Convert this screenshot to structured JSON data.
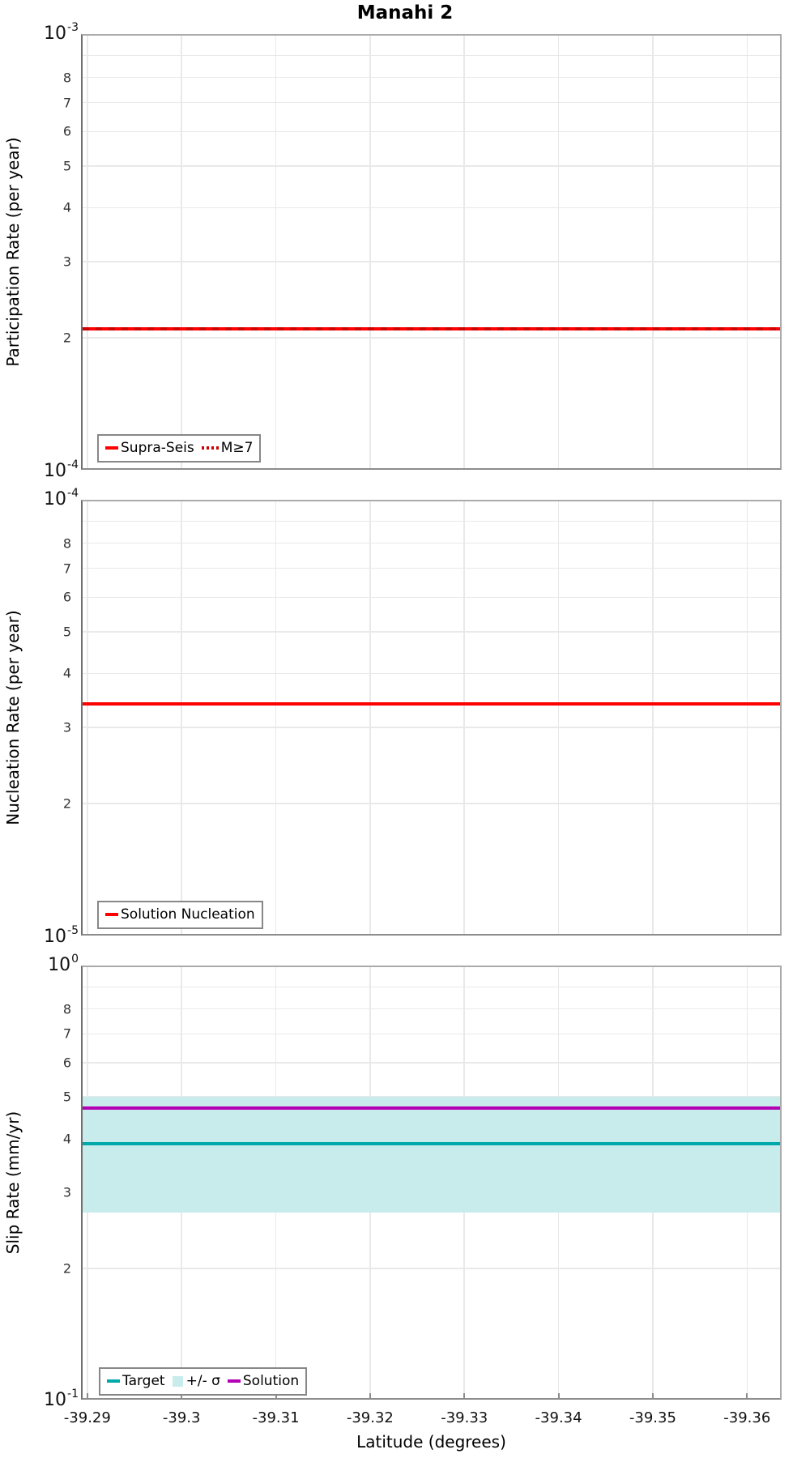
{
  "title": "Manahi 2",
  "xaxis": {
    "label": "Latitude (degrees)",
    "ticks": [
      -39.29,
      -39.3,
      -39.31,
      -39.32,
      -39.33,
      -39.34,
      -39.35,
      -39.36
    ],
    "tick_labels": [
      "-39.29",
      "-39.3",
      "-39.31",
      "-39.32",
      "-39.33",
      "-39.34",
      "-39.35",
      "-39.36"
    ],
    "range": [
      -39.2895,
      -39.3635
    ],
    "x_reversed": true
  },
  "colors": {
    "red": "#ff0000",
    "dark_red": "#cf0000",
    "teal": "#00a9a9",
    "magenta": "#b400b4",
    "band_cyan": "#c8ecec",
    "grid": "#e9e9e9",
    "border": "#ababab",
    "tick_text": "#333333"
  },
  "chart_data": [
    {
      "type": "line",
      "panel": "participation-rate",
      "ylabel": "Participation Rate (per year)",
      "yscale": "log",
      "ylim": [
        0.0001,
        0.001
      ],
      "scale_labels": {
        "base": "10",
        "top_exp": "-3",
        "bottom_exp": "-4"
      },
      "minor_ticks": [
        8,
        7,
        6,
        5,
        4,
        3,
        2
      ],
      "grid": true,
      "legend_position": "lower-left",
      "series": [
        {
          "name": "Supra-Seis",
          "color": "#ff0000",
          "style": "solid",
          "width": 4,
          "y": 0.00021
        },
        {
          "name": "M≥7",
          "color": "#cf0000",
          "style": "dotted",
          "width": 4,
          "y": 0.00021
        }
      ],
      "legend": [
        {
          "label": "Supra-Seis"
        },
        {
          "label": "M≥7"
        }
      ]
    },
    {
      "type": "line",
      "panel": "nucleation-rate",
      "ylabel": "Nucleation Rate (per year)",
      "yscale": "log",
      "ylim": [
        1e-05,
        0.0001
      ],
      "scale_labels": {
        "base": "10",
        "top_exp": "-4",
        "bottom_exp": "-5"
      },
      "minor_ticks": [
        8,
        7,
        6,
        5,
        4,
        3,
        2
      ],
      "grid": true,
      "legend_position": "lower-left",
      "series": [
        {
          "name": "Solution Nucleation",
          "color": "#ff0000",
          "style": "solid",
          "width": 4,
          "y": 3.4e-05
        }
      ],
      "legend": [
        {
          "label": "Solution Nucleation"
        }
      ]
    },
    {
      "type": "line",
      "panel": "slip-rate",
      "ylabel": "Slip Rate (mm/yr)",
      "yscale": "log",
      "ylim": [
        0.1,
        1
      ],
      "scale_labels": {
        "base": "10",
        "top_exp": "0",
        "bottom_exp": "-1"
      },
      "minor_ticks": [
        8,
        7,
        6,
        5,
        4,
        3,
        2
      ],
      "grid": true,
      "legend_position": "lower-left",
      "band": {
        "label": "+/- σ",
        "lo": 0.27,
        "hi": 0.5,
        "color": "#c8ecec"
      },
      "series": [
        {
          "name": "Target",
          "color": "#00a9a9",
          "style": "solid",
          "width": 4,
          "y": 0.39
        },
        {
          "name": "Solution",
          "color": "#b400b4",
          "style": "solid",
          "width": 4,
          "y": 0.47
        }
      ],
      "legend": [
        {
          "label": "Target"
        },
        {
          "label": "+/- σ"
        },
        {
          "label": "Solution"
        }
      ]
    }
  ]
}
